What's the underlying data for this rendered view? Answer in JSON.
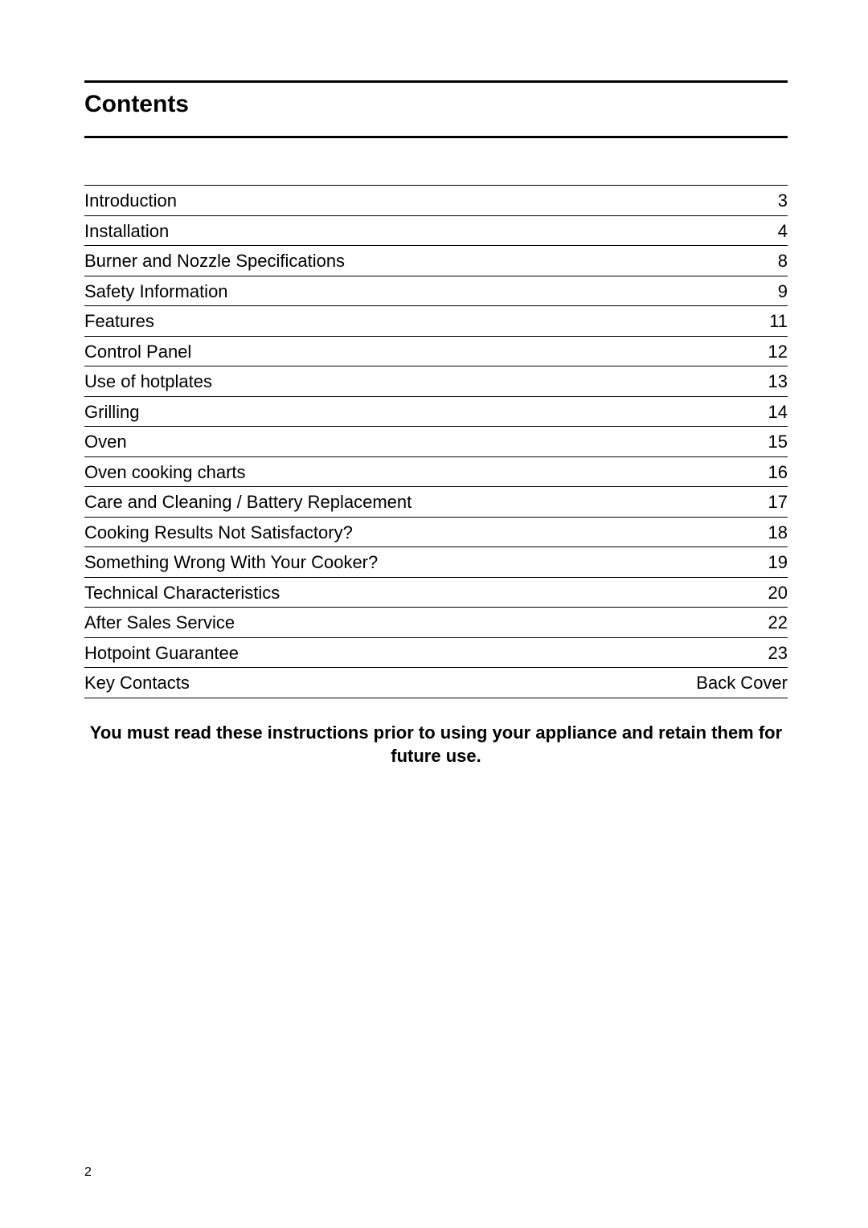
{
  "title": "Contents",
  "toc": {
    "font_size_pt": 17,
    "rule_color": "#000000",
    "rows": [
      {
        "label": "Introduction",
        "page": "3"
      },
      {
        "label": "Installation",
        "page": "4"
      },
      {
        "label": "Burner and Nozzle Specifications",
        "page": "8"
      },
      {
        "label": "Safety Information",
        "page": "9"
      },
      {
        "label": "Features",
        "page": "11"
      },
      {
        "label": "Control Panel",
        "page": "12"
      },
      {
        "label": "Use of hotplates",
        "page": "13"
      },
      {
        "label": "Grilling",
        "page": "14"
      },
      {
        "label": "Oven",
        "page": "15"
      },
      {
        "label": "Oven cooking charts",
        "page": "16"
      },
      {
        "label": "Care and Cleaning / Battery Replacement",
        "page": "17"
      },
      {
        "label": "Cooking Results Not Satisfactory?",
        "page": "18"
      },
      {
        "label": "Something Wrong With Your Cooker?",
        "page": "19"
      },
      {
        "label": "Technical Characteristics",
        "page": "20"
      },
      {
        "label": "After Sales Service",
        "page": "22"
      },
      {
        "label": "Hotpoint Guarantee",
        "page": "23"
      },
      {
        "label": "Key Contacts",
        "page": "Back Cover"
      }
    ]
  },
  "notice_line1": "You must read these instructions prior to using your appliance and retain them for",
  "notice_line2": "future use.",
  "page_number": "2",
  "colors": {
    "text": "#000000",
    "background": "#ffffff",
    "rule": "#000000"
  }
}
